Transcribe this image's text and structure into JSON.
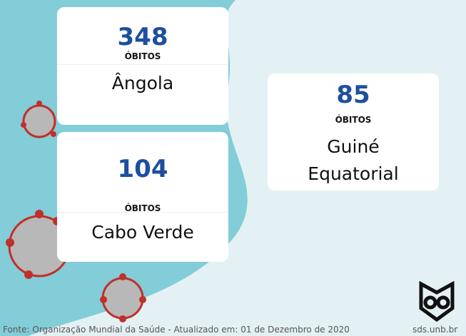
{
  "cards": [
    {
      "value": 348,
      "label": "ÓBITOS",
      "country": "Ângola"
    },
    {
      "value": 104,
      "label": "ÓBITOS",
      "country": "Cabo Verde"
    },
    {
      "value": 85,
      "label": "ÓBITOS",
      "country": "Guiné Equatorial"
    }
  ],
  "footer": {
    "source": "Fonte: Organização Mundial da Saúde - Atualizado em: 01 de Dezembro de 2020",
    "site": "sds.unb.br"
  }
}
